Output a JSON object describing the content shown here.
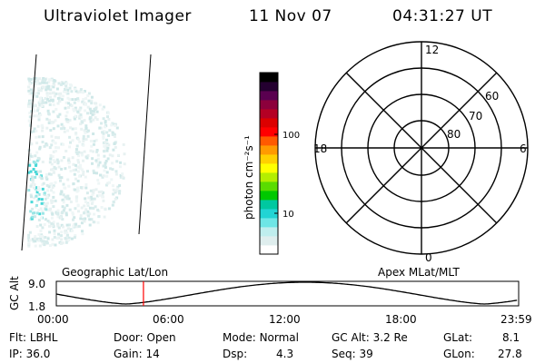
{
  "header": {
    "instrument": "Ultraviolet Imager",
    "date": "11 Nov 07",
    "time": "04:31:27 UT"
  },
  "colorbar": {
    "label": "photon cm⁻²s⁻¹",
    "tick_labels": [
      "100",
      "10"
    ],
    "colors": [
      "#ffffff",
      "#dfeeee",
      "#bfeeee",
      "#6ee6e6",
      "#22d4d4",
      "#00c8a0",
      "#00c800",
      "#5adc00",
      "#b4ee00",
      "#ffff00",
      "#ffd000",
      "#ff9a00",
      "#ff5a00",
      "#ff0000",
      "#dc0000",
      "#b40024",
      "#8c003c",
      "#5a0050",
      "#240030",
      "#000000"
    ]
  },
  "polar_plot": {
    "mlt_labels": {
      "top": "12",
      "left": "18",
      "right": "6",
      "bottom": "0"
    },
    "lat_labels": [
      "60",
      "70",
      "80"
    ]
  },
  "timeline": {
    "title_left": "Geographic Lat/Lon",
    "title_right": "Apex MLat/MLT",
    "y_axis_label": "GC Alt",
    "y_ticks": [
      "9.0",
      "1.8"
    ],
    "x_ticks": [
      "00:00",
      "06:00",
      "12:00",
      "18:00",
      "23:59"
    ],
    "current_time_hours": 4.52,
    "marker_color": "#ff0000"
  },
  "info": {
    "row1": {
      "flt_label": "Flt:",
      "flt_value": "LBHL",
      "door_label": "Door:",
      "door_value": "Open",
      "mode_label": "Mode:",
      "mode_value": "Normal",
      "gcalt_label": "GC Alt:",
      "gcalt_value": "3.2 Re",
      "glat_label": "GLat:",
      "glat_value": "8.1"
    },
    "row2": {
      "ip_label": "IP:",
      "ip_value": "36.0",
      "gain_label": "Gain:",
      "gain_value": "14",
      "dsp_label": "Dsp:",
      "dsp_value": "4.3",
      "seq_label": "Seq:",
      "seq_value": "39",
      "glon_label": "GLon:",
      "glon_value": "27.8"
    }
  }
}
